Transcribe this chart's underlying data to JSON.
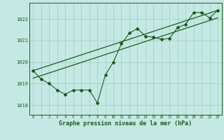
{
  "title": "Graphe pression niveau de la mer (hPa)",
  "background_color": "#c5e8e4",
  "line_color": "#1a5c1a",
  "grid_color": "#9ecec8",
  "x_values": [
    0,
    1,
    2,
    3,
    4,
    5,
    6,
    7,
    8,
    9,
    10,
    11,
    12,
    13,
    14,
    15,
    16,
    17,
    18,
    19,
    20,
    21,
    22,
    23
  ],
  "pressure_line": [
    1019.6,
    1019.2,
    1019.0,
    1018.7,
    1018.5,
    1018.7,
    1018.7,
    1018.7,
    1018.1,
    1019.4,
    1020.0,
    1020.85,
    1021.35,
    1021.55,
    1021.2,
    1021.15,
    1021.05,
    1021.1,
    1021.6,
    1021.75,
    1022.3,
    1022.3,
    1022.05,
    1022.4
  ],
  "trend1_x": [
    0,
    23
  ],
  "trend1_y": [
    1019.6,
    1022.4
  ],
  "trend2_x": [
    0,
    23
  ],
  "trend2_y": [
    1019.25,
    1022.05
  ],
  "ylim": [
    1017.55,
    1022.75
  ],
  "yticks": [
    1018,
    1019,
    1020,
    1021,
    1022
  ],
  "xlim": [
    -0.5,
    23.5
  ],
  "xticks": [
    0,
    1,
    2,
    3,
    4,
    5,
    6,
    7,
    8,
    9,
    10,
    11,
    12,
    13,
    14,
    15,
    16,
    17,
    18,
    19,
    20,
    21,
    22,
    23
  ]
}
